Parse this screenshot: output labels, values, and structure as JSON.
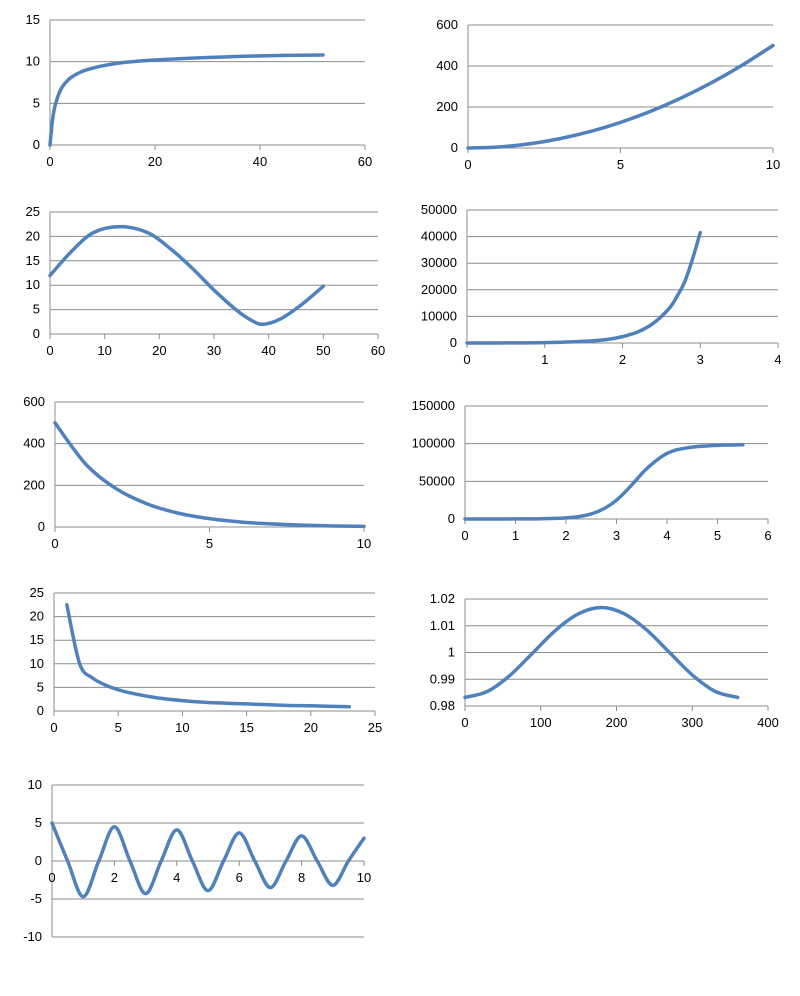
{
  "colors": {
    "series": "#4f81bd",
    "grid": "#8c8c8c",
    "text": "#000000"
  },
  "chart_data": [
    {
      "type": "line",
      "xlim": [
        0,
        60
      ],
      "ylim": [
        0,
        15
      ],
      "xticks": [
        0,
        20,
        40,
        60
      ],
      "yticks": [
        0,
        5,
        10,
        15
      ],
      "grid": "horizontal",
      "series": [
        {
          "x": [
            0,
            0.5,
            1,
            2,
            3,
            4,
            6,
            8,
            10,
            14,
            20,
            30,
            40,
            52
          ],
          "y": [
            0,
            3.1,
            4.8,
            6.6,
            7.5,
            8.1,
            8.8,
            9.2,
            9.5,
            9.9,
            10.2,
            10.5,
            10.7,
            10.8
          ]
        }
      ]
    },
    {
      "type": "line",
      "xlim": [
        0,
        10
      ],
      "ylim": [
        0,
        600
      ],
      "xticks": [
        0,
        5,
        10
      ],
      "yticks": [
        0,
        200,
        400,
        600
      ],
      "grid": "horizontal",
      "series": [
        {
          "x": [
            0,
            1,
            2,
            3,
            4,
            5,
            6,
            7,
            8,
            9,
            10
          ],
          "y": [
            0,
            5,
            20,
            45,
            80,
            125,
            180,
            245,
            320,
            405,
            500
          ]
        }
      ]
    },
    {
      "type": "line",
      "xlim": [
        0,
        60
      ],
      "ylim": [
        0,
        25
      ],
      "xticks": [
        0,
        10,
        20,
        30,
        40,
        50,
        60
      ],
      "yticks": [
        0,
        5,
        10,
        15,
        20,
        25
      ],
      "grid": "horizontal",
      "series": [
        {
          "x": [
            0,
            4,
            8,
            13,
            18,
            22,
            26,
            30,
            34,
            37,
            39,
            42,
            46,
            50
          ],
          "y": [
            12,
            17,
            20.8,
            22,
            20.7,
            17.5,
            13.5,
            9,
            5,
            2.7,
            2,
            3,
            6,
            9.8
          ]
        }
      ]
    },
    {
      "type": "line",
      "xlim": [
        0,
        4
      ],
      "ylim": [
        0,
        50000
      ],
      "xticks": [
        0,
        1,
        2,
        3,
        4
      ],
      "yticks": [
        0,
        10000,
        20000,
        30000,
        40000,
        50000
      ],
      "grid": "horizontal",
      "series": [
        {
          "x": [
            0,
            0.5,
            1,
            1.5,
            1.8,
            2,
            2.2,
            2.4,
            2.6,
            2.7,
            2.8,
            2.9,
            3
          ],
          "y": [
            0,
            40,
            150,
            600,
            1300,
            2400,
            4200,
            7500,
            13000,
            17500,
            23000,
            31500,
            41500
          ]
        }
      ]
    },
    {
      "type": "line",
      "xlim": [
        0,
        10
      ],
      "ylim": [
        0,
        600
      ],
      "xticks": [
        0,
        5,
        10
      ],
      "yticks": [
        0,
        200,
        400,
        600
      ],
      "grid": "horizontal",
      "series": [
        {
          "x": [
            0,
            1,
            2,
            3,
            4,
            5,
            6,
            7,
            8,
            9,
            10
          ],
          "y": [
            500,
            301,
            182,
            110,
            66,
            40,
            24,
            15,
            9,
            5,
            3
          ]
        }
      ]
    },
    {
      "type": "line",
      "xlim": [
        0,
        6
      ],
      "ylim": [
        0,
        150000
      ],
      "xticks": [
        0,
        1,
        2,
        3,
        4,
        5,
        6
      ],
      "yticks": [
        0,
        50000,
        100000,
        150000
      ],
      "grid": "horizontal",
      "series": [
        {
          "x": [
            0,
            1,
            1.5,
            2,
            2.4,
            2.7,
            3,
            3.3,
            3.6,
            4,
            4.4,
            5,
            5.5
          ],
          "y": [
            0,
            100,
            400,
            1500,
            5000,
            12000,
            25000,
            45000,
            67000,
            87000,
            94500,
            97800,
            98500
          ]
        }
      ]
    },
    {
      "type": "line",
      "xlim": [
        0,
        25
      ],
      "ylim": [
        0,
        25
      ],
      "xticks": [
        0,
        5,
        10,
        15,
        20,
        25
      ],
      "yticks": [
        0,
        5,
        10,
        15,
        20,
        25
      ],
      "grid": "horizontal",
      "series": [
        {
          "x": [
            1,
            2,
            3,
            4,
            5,
            6,
            8,
            10,
            12,
            15,
            18,
            20,
            23
          ],
          "y": [
            22.5,
            10,
            7,
            5.5,
            4.5,
            3.8,
            2.8,
            2.2,
            1.8,
            1.5,
            1.2,
            1.1,
            0.9
          ]
        }
      ]
    },
    {
      "type": "line",
      "xlim": [
        0,
        400
      ],
      "ylim": [
        0.98,
        1.02
      ],
      "xticks": [
        0,
        100,
        200,
        300,
        400
      ],
      "yticks": [
        0.98,
        0.99,
        1,
        1.01,
        1.02
      ],
      "ytick_labels": [
        "0.98",
        "0.99",
        "1",
        "1.01",
        "1.02"
      ],
      "grid": "horizontal",
      "series": [
        {
          "x": [
            0,
            30,
            60,
            90,
            120,
            150,
            180,
            210,
            240,
            270,
            300,
            330,
            360
          ],
          "y": [
            0.9832,
            0.9855,
            0.9916,
            1.0,
            1.0084,
            1.0145,
            1.0168,
            1.0145,
            1.0084,
            1.0,
            0.9916,
            0.9855,
            0.9832
          ]
        }
      ]
    },
    {
      "type": "line",
      "xlim": [
        0,
        10
      ],
      "ylim": [
        -10,
        10
      ],
      "xticks": [
        0,
        2,
        4,
        6,
        8,
        10
      ],
      "yticks": [
        -10,
        -5,
        0,
        5,
        10
      ],
      "grid": "horizontal",
      "series": [
        {
          "x": [
            0,
            0.5,
            1,
            1.5,
            2,
            2.5,
            3,
            3.5,
            4,
            4.5,
            5,
            5.5,
            6,
            6.5,
            7,
            7.5,
            8,
            8.5,
            9,
            9.5,
            10
          ],
          "y": [
            5,
            0,
            -4.7,
            0,
            4.5,
            0,
            -4.3,
            0,
            4.1,
            0,
            -3.9,
            0,
            3.7,
            0,
            -3.5,
            0,
            3.3,
            0,
            -3.2,
            0,
            3.0
          ]
        }
      ]
    }
  ]
}
